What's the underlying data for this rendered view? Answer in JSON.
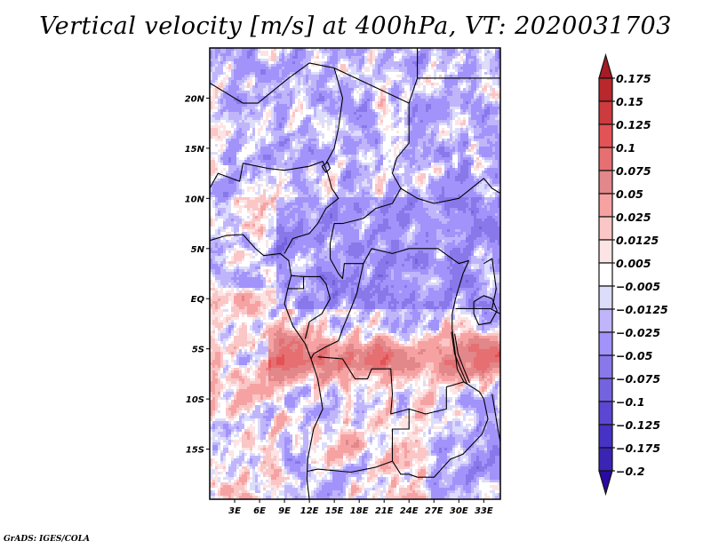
{
  "chart_data": {
    "type": "heatmap",
    "title": "Vertical velocity [m/s] at 400hPa, VT: 2020031703",
    "variable": "Vertical velocity",
    "units": "m/s",
    "level": "400hPa",
    "valid_time": "2020031703",
    "xlabel": "",
    "ylabel": "",
    "x_range_deg_lon": [
      0,
      35
    ],
    "y_range_deg_lat": [
      -20,
      25
    ],
    "x_ticks": [
      {
        "lon": 3,
        "label": "3E"
      },
      {
        "lon": 6,
        "label": "6E"
      },
      {
        "lon": 9,
        "label": "9E"
      },
      {
        "lon": 12,
        "label": "12E"
      },
      {
        "lon": 15,
        "label": "15E"
      },
      {
        "lon": 18,
        "label": "18E"
      },
      {
        "lon": 21,
        "label": "21E"
      },
      {
        "lon": 24,
        "label": "24E"
      },
      {
        "lon": 27,
        "label": "27E"
      },
      {
        "lon": 30,
        "label": "30E"
      },
      {
        "lon": 33,
        "label": "33E"
      }
    ],
    "y_ticks": [
      {
        "lat": 20,
        "label": "20N"
      },
      {
        "lat": 15,
        "label": "15N"
      },
      {
        "lat": 10,
        "label": "10N"
      },
      {
        "lat": 5,
        "label": "5N"
      },
      {
        "lat": 0,
        "label": "EQ"
      },
      {
        "lat": -5,
        "label": "5S"
      },
      {
        "lat": -10,
        "label": "10S"
      },
      {
        "lat": -15,
        "label": "15S"
      }
    ],
    "colorbar": {
      "levels": [
        "0.175",
        "0.15",
        "0.125",
        "0.1",
        "0.075",
        "0.05",
        "0.025",
        "0.0125",
        "0.005",
        "-0.005",
        "-0.0125",
        "-0.025",
        "-0.05",
        "-0.075",
        "-0.1",
        "-0.125",
        "-0.175",
        "-0.2"
      ],
      "colors": [
        "#a51c24",
        "#b8282c",
        "#cc3b3e",
        "#e25356",
        "#e66f72",
        "#e2878a",
        "#f6a2a2",
        "#fac6c6",
        "#fde4e4",
        "#ffffff",
        "#dcdcfb",
        "#c0b5fb",
        "#a193fa",
        "#8978ea",
        "#7463de",
        "#5b47d1",
        "#4633c4",
        "#3a24b4",
        "#2a0aa2"
      ],
      "extend": "both",
      "placement": "right"
    },
    "field_description": "Noisy mottled field of alternating positive (red) and negative (blue) vertical velocity; strongest positive (dark red) values along a band near 5S-8S from the Congo coast eastward to Lake Tanganyika, and scattered in southern Angola/Zambia near 12S-15S; predominantly weak negative (blue) over central Africa 0-10N and the Sahara; weak positive (light red) over the Gulf of Guinea and Atlantic south of the equator.",
    "grid": false,
    "overlay": "country borders and coastlines (black)"
  },
  "footer": {
    "credit": "GrADS: IGES/COLA"
  }
}
